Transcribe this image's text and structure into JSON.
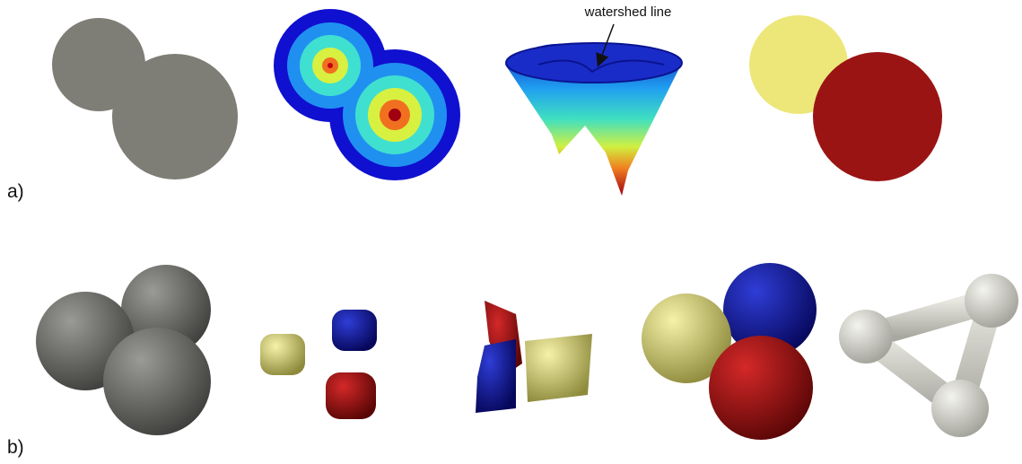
{
  "figure": {
    "annotation": "watershed line",
    "panels": [
      {
        "label": "a)"
      },
      {
        "label": "b)"
      }
    ]
  }
}
